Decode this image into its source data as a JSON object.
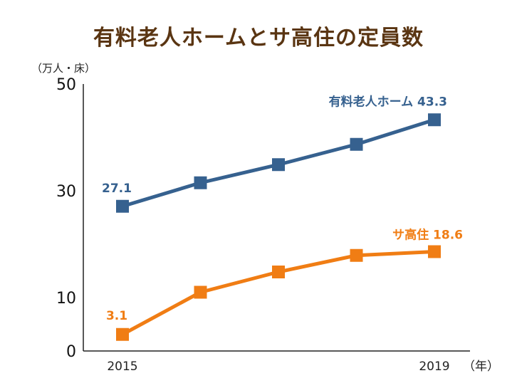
{
  "chart_data": {
    "type": "line",
    "title": "有料老人ホームとサ高住の定員数",
    "y_unit": "（万人・床）",
    "x_unit": "（年）",
    "x": [
      2015,
      2016,
      2017,
      2018,
      2019
    ],
    "x_tick_labels": [
      "2015",
      "",
      "",
      "",
      "2019"
    ],
    "ylim": [
      0,
      50
    ],
    "y_ticks": [
      0,
      10,
      30,
      50
    ],
    "grid": false,
    "series": [
      {
        "name": "有料老人ホーム",
        "color": "#36618f",
        "values": [
          27.1,
          31.5,
          34.9,
          38.7,
          43.3
        ],
        "start_label": "27.1",
        "end_label": "有料老人ホーム 43.3"
      },
      {
        "name": "サ高住",
        "color": "#f07d14",
        "values": [
          3.1,
          11.0,
          14.8,
          17.9,
          18.6
        ],
        "start_label": "3.1",
        "end_label": "サ高住 18.6"
      }
    ]
  }
}
